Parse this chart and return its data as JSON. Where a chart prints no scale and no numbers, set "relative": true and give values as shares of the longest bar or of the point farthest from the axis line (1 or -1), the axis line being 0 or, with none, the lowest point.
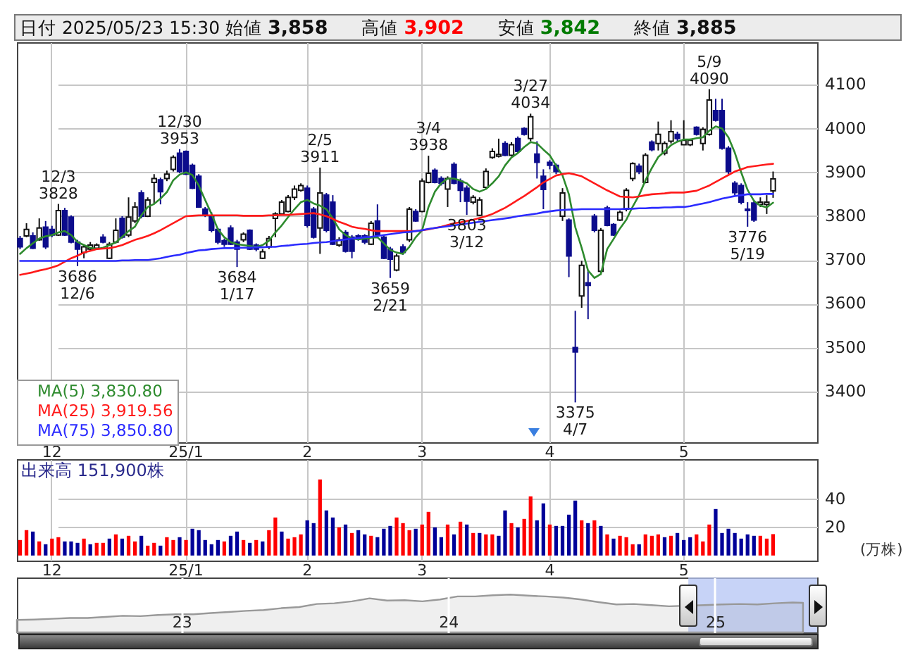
{
  "chart_data": [
    {
      "type": "candlestick",
      "title": "日付 2025/05/23 15:30 始値 3,858 高値 3,902 安値 3,842 終値 3,885",
      "categories": [
        null,
        null,
        null,
        null,
        null,
        "12",
        null,
        null,
        null,
        null,
        null,
        null,
        null,
        null,
        null,
        null,
        null,
        null,
        null,
        null,
        null,
        null,
        null,
        null,
        null,
        null,
        "25/1",
        null,
        null,
        null,
        null,
        null,
        null,
        null,
        null,
        null,
        null,
        null,
        null,
        null,
        null,
        null,
        null,
        null,
        null,
        "2",
        null,
        null,
        null,
        null,
        null,
        null,
        null,
        null,
        null,
        null,
        null,
        null,
        null,
        null,
        null,
        null,
        null,
        "3",
        null,
        null,
        null,
        null,
        null,
        null,
        null,
        null,
        null,
        null,
        null,
        null,
        null,
        null,
        null,
        null,
        null,
        null,
        null,
        "4",
        null,
        null,
        null,
        null,
        null,
        null,
        null,
        null,
        null,
        null,
        null,
        null,
        null,
        null,
        null,
        null,
        null,
        null,
        null,
        null,
        "5",
        null,
        null,
        null,
        null,
        null,
        null,
        null,
        null,
        null,
        null,
        null,
        null,
        null,
        null
      ],
      "ohlc": [
        [
          3749,
          3755,
          3725,
          3730
        ],
        [
          3755,
          3784,
          3752,
          3770
        ],
        [
          3755,
          3763,
          3725,
          3727
        ],
        [
          3746,
          3795,
          3744,
          3773
        ],
        [
          3775,
          3789,
          3725,
          3730
        ],
        [
          3770,
          3778,
          3752,
          3757
        ],
        [
          3757,
          3828,
          3755,
          3813
        ],
        [
          3813,
          3819,
          3755,
          3757
        ],
        [
          3798,
          3802,
          3738,
          3741
        ],
        [
          3741,
          3746,
          3686,
          3725
        ],
        [
          3717,
          3736,
          3704,
          3730
        ],
        [
          3725,
          3741,
          3720,
          3734
        ],
        [
          3727,
          3738,
          3723,
          3734
        ],
        [
          3752,
          3759,
          3738,
          3741
        ],
        [
          3704,
          3741,
          3702,
          3736
        ],
        [
          3741,
          3795,
          3738,
          3768
        ],
        [
          3795,
          3800,
          3749,
          3752
        ],
        [
          3757,
          3843,
          3752,
          3798
        ],
        [
          3789,
          3832,
          3784,
          3821
        ],
        [
          3853,
          3859,
          3795,
          3800
        ],
        [
          3800,
          3843,
          3798,
          3837
        ],
        [
          3877,
          3896,
          3827,
          3886
        ],
        [
          3883,
          3888,
          3827,
          3856
        ],
        [
          3886,
          3904,
          3880,
          3896
        ],
        [
          3907,
          3939,
          3902,
          3934
        ],
        [
          3944,
          3953,
          3898,
          3902
        ],
        [
          3948,
          3950,
          3894,
          3896
        ],
        [
          3916,
          3920,
          3862,
          3864
        ],
        [
          3891,
          3896,
          3819,
          3821
        ],
        [
          3816,
          3821,
          3798,
          3802
        ],
        [
          3800,
          3809,
          3763,
          3768
        ],
        [
          3770,
          3773,
          3736,
          3741
        ],
        [
          3744,
          3749,
          3730,
          3736
        ],
        [
          3773,
          3779,
          3734,
          3736
        ],
        [
          3741,
          3746,
          3684,
          3725
        ],
        [
          3746,
          3763,
          3741,
          3759
        ],
        [
          3768,
          3770,
          3723,
          3725
        ],
        [
          3734,
          3738,
          3720,
          3725
        ],
        [
          3704,
          3725,
          3702,
          3719
        ],
        [
          3730,
          3755,
          3725,
          3749
        ],
        [
          3795,
          3809,
          3752,
          3805
        ],
        [
          3805,
          3837,
          3802,
          3832
        ],
        [
          3811,
          3848,
          3809,
          3843
        ],
        [
          3843,
          3870,
          3837,
          3862
        ],
        [
          3859,
          3875,
          3856,
          3870
        ],
        [
          3864,
          3870,
          3774,
          3779
        ],
        [
          3816,
          3821,
          3749,
          3752
        ],
        [
          3773,
          3911,
          3714,
          3853
        ],
        [
          3848,
          3853,
          3763,
          3768
        ],
        [
          3832,
          3848,
          3734,
          3736
        ],
        [
          3734,
          3752,
          3730,
          3746
        ],
        [
          3763,
          3768,
          3717,
          3720
        ],
        [
          3752,
          3757,
          3704,
          3720
        ],
        [
          3755,
          3759,
          3744,
          3749
        ],
        [
          3755,
          3759,
          3736,
          3741
        ],
        [
          3736,
          3789,
          3734,
          3784
        ],
        [
          3789,
          3827,
          3752,
          3757
        ],
        [
          3752,
          3757,
          3702,
          3704
        ],
        [
          3725,
          3730,
          3659,
          3702
        ],
        [
          3677,
          3714,
          3674,
          3709
        ],
        [
          3730,
          3736,
          3712,
          3717
        ],
        [
          3746,
          3821,
          3741,
          3816
        ],
        [
          3811,
          3816,
          3787,
          3789
        ],
        [
          3811,
          3886,
          3809,
          3880
        ],
        [
          3877,
          3938,
          3875,
          3898
        ],
        [
          3905,
          3909,
          3875,
          3877
        ],
        [
          3886,
          3891,
          3870,
          3875
        ],
        [
          3862,
          3891,
          3821,
          3886
        ],
        [
          3918,
          3923,
          3873,
          3875
        ],
        [
          3880,
          3886,
          3832,
          3859
        ],
        [
          3864,
          3870,
          3803,
          3834
        ],
        [
          3832,
          3848,
          3827,
          3843
        ],
        [
          3802,
          3843,
          3800,
          3837
        ],
        [
          3866,
          3909,
          3862,
          3902
        ],
        [
          3934,
          3955,
          3931,
          3948
        ],
        [
          3937,
          3977,
          3934,
          3941
        ],
        [
          3966,
          3971,
          3937,
          3939
        ],
        [
          3939,
          3969,
          3937,
          3963
        ],
        [
          3977,
          3982,
          3944,
          3948
        ],
        [
          4000,
          4003,
          3984,
          3987
        ],
        [
          3977,
          4034,
          3971,
          4027
        ],
        [
          3942,
          3971,
          3886,
          3923
        ],
        [
          3891,
          3907,
          3816,
          3861
        ],
        [
          3923,
          3928,
          3907,
          3916
        ],
        [
          3916,
          3920,
          3896,
          3902
        ],
        [
          3800,
          3864,
          3789,
          3853
        ],
        [
          3791,
          3795,
          3661,
          3709
        ],
        [
          3500,
          3584,
          3375,
          3490
        ],
        [
          3618,
          3698,
          3591,
          3688
        ],
        [
          3648,
          3677,
          3565,
          3642
        ],
        [
          3800,
          3805,
          3763,
          3768
        ],
        [
          3674,
          3773,
          3666,
          3768
        ],
        [
          3819,
          3824,
          3777,
          3779
        ],
        [
          3781,
          3784,
          3755,
          3757
        ],
        [
          3791,
          3813,
          3789,
          3809
        ],
        [
          3816,
          3864,
          3811,
          3859
        ],
        [
          3886,
          3923,
          3880,
          3920
        ],
        [
          3914,
          3920,
          3896,
          3902
        ],
        [
          3877,
          3944,
          3875,
          3939
        ],
        [
          3969,
          3973,
          3948,
          3952
        ],
        [
          3966,
          4016,
          3950,
          3987
        ],
        [
          3944,
          3971,
          3939,
          3966
        ],
        [
          3971,
          4019,
          3966,
          3993
        ],
        [
          3987,
          3993,
          3971,
          3977
        ],
        [
          3963,
          4019,
          3963,
          3973
        ],
        [
          3963,
          3977,
          3960,
          3973
        ],
        [
          4003,
          4005,
          3984,
          3987
        ],
        [
          3966,
          4003,
          3950,
          3998
        ],
        [
          3987,
          4090,
          3984,
          4065
        ],
        [
          4041,
          4068,
          4016,
          4019
        ],
        [
          4041,
          4068,
          3952,
          3955
        ],
        [
          3955,
          3960,
          3896,
          3902
        ],
        [
          3875,
          3880,
          3848,
          3854
        ],
        [
          3870,
          3875,
          3827,
          3832
        ],
        [
          3816,
          3832,
          3776,
          3813
        ],
        [
          3830,
          3837,
          3787,
          3791
        ],
        [
          3827,
          3843,
          3821,
          3832
        ],
        [
          3827,
          3848,
          3805,
          3832
        ],
        [
          3858,
          3902,
          3842,
          3885
        ]
      ],
      "series": [
        {
          "name": "MA(5) 3,830.80",
          "type": "line",
          "color": "#2e8b2e",
          "values": [
            3714,
            3727,
            3738,
            3749,
            3754,
            3757,
            3763,
            3766,
            3757,
            3741,
            3734,
            3728,
            3725,
            3728,
            3734,
            3740,
            3753,
            3766,
            3776,
            3802,
            3821,
            3828,
            3840,
            3855,
            3882,
            3895,
            3900,
            3894,
            3870,
            3837,
            3805,
            3770,
            3752,
            3741,
            3736,
            3734,
            3732,
            3730,
            3734,
            3744,
            3763,
            3779,
            3798,
            3816,
            3832,
            3837,
            3829,
            3824,
            3816,
            3795,
            3770,
            3757,
            3749,
            3747,
            3749,
            3751,
            3752,
            3738,
            3723,
            3717,
            3714,
            3730,
            3752,
            3768,
            3821,
            3856,
            3875,
            3886,
            3886,
            3881,
            3875,
            3862,
            3856,
            3862,
            3875,
            3891,
            3916,
            3934,
            3944,
            3958,
            3969,
            3966,
            3952,
            3939,
            3915,
            3893,
            3850,
            3775,
            3728,
            3676,
            3659,
            3668,
            3725,
            3748,
            3772,
            3792,
            3822,
            3848,
            3882,
            3910,
            3935,
            3948,
            3962,
            3970,
            3975,
            3975,
            3978,
            3980,
            3995,
            4005,
            4000,
            3980,
            3945,
            3900,
            3860,
            3835,
            3824,
            3820,
            3830.8
          ]
        },
        {
          "name": "MA(25) 3,919.56",
          "type": "line",
          "color": "#ff1a1a",
          "values": [
            3666,
            3669,
            3672,
            3676,
            3679,
            3683,
            3688,
            3696,
            3704,
            3710,
            3717,
            3721,
            3725,
            3726,
            3727,
            3730,
            3734,
            3740,
            3746,
            3750,
            3755,
            3761,
            3768,
            3776,
            3784,
            3792,
            3800,
            3801,
            3802,
            3802,
            3802,
            3802,
            3802,
            3802,
            3802,
            3801,
            3801,
            3801,
            3801,
            3802,
            3802,
            3803,
            3803,
            3804,
            3805,
            3806,
            3807,
            3804,
            3800,
            3794,
            3787,
            3782,
            3776,
            3773,
            3771,
            3768,
            3766,
            3766,
            3766,
            3766,
            3766,
            3766,
            3766,
            3768,
            3770,
            3773,
            3776,
            3780,
            3784,
            3786,
            3789,
            3792,
            3796,
            3800,
            3805,
            3812,
            3819,
            3828,
            3837,
            3846,
            3856,
            3866,
            3877,
            3885,
            3893,
            3896,
            3898,
            3895,
            3891,
            3883,
            3875,
            3867,
            3859,
            3852,
            3845,
            3844,
            3843,
            3845,
            3848,
            3850,
            3851,
            3852,
            3854,
            3854,
            3854,
            3856,
            3858,
            3864,
            3870,
            3878,
            3886,
            3894,
            3902,
            3907,
            3912,
            3914,
            3916,
            3918,
            3919.56
          ]
        },
        {
          "name": "MA(75) 3,850.80",
          "type": "line",
          "color": "#2b2bff",
          "values": [
            3698,
            3698,
            3698,
            3698,
            3698,
            3698,
            3698,
            3698,
            3698,
            3698,
            3698,
            3698,
            3698,
            3698,
            3698,
            3698,
            3699,
            3699,
            3700,
            3700,
            3700,
            3702,
            3704,
            3707,
            3710,
            3712,
            3716,
            3719,
            3722,
            3723,
            3725,
            3726,
            3727,
            3727,
            3728,
            3728,
            3728,
            3729,
            3729,
            3730,
            3730,
            3732,
            3733,
            3735,
            3736,
            3737,
            3739,
            3740,
            3741,
            3743,
            3745,
            3747,
            3749,
            3750,
            3752,
            3753,
            3755,
            3757,
            3759,
            3761,
            3763,
            3764,
            3766,
            3768,
            3771,
            3773,
            3775,
            3777,
            3779,
            3781,
            3783,
            3785,
            3787,
            3789,
            3791,
            3793,
            3795,
            3797,
            3800,
            3802,
            3804,
            3806,
            3809,
            3811,
            3813,
            3814,
            3815,
            3815,
            3816,
            3816,
            3816,
            3816,
            3816,
            3816,
            3816,
            3817,
            3817,
            3818,
            3818,
            3819,
            3819,
            3820,
            3820,
            3821,
            3821,
            3823,
            3826,
            3829,
            3832,
            3836,
            3840,
            3843,
            3846,
            3848,
            3850,
            3850,
            3850,
            3851,
            3850.8
          ]
        }
      ],
      "ylim": [
        3284,
        4197
      ],
      "yticks": [
        3400,
        3500,
        3600,
        3700,
        3800,
        3900,
        4000,
        4100
      ],
      "grid": true,
      "legend": "bottom left",
      "annotations": [
        {
          "text": "12/3\n3828",
          "y": 3828
        },
        {
          "text": "3686\n12/6",
          "y": 3686
        },
        {
          "text": "12/30\n3953",
          "y": 3953
        },
        {
          "text": "3684\n1/17",
          "y": 3684
        },
        {
          "text": "2/5\n3911",
          "y": 3911
        },
        {
          "text": "3659\n2/21",
          "y": 3659
        },
        {
          "text": "3/4\n3938",
          "y": 3938
        },
        {
          "text": "3803\n3/12",
          "y": 3803
        },
        {
          "text": "3/27\n4034",
          "y": 4034
        },
        {
          "text": "3375\n4/7",
          "y": 3375
        },
        {
          "text": "5/9\n4090",
          "y": 4090
        },
        {
          "text": "3776\n5/19",
          "y": 3776
        }
      ]
    },
    {
      "type": "bar",
      "title": "出来高 151,900株",
      "ylabel": "(万株)",
      "categories": [
        null,
        null,
        null,
        null,
        null,
        "12",
        null,
        null,
        null,
        null,
        null,
        null,
        null,
        null,
        null,
        null,
        null,
        null,
        null,
        null,
        null,
        null,
        null,
        null,
        null,
        null,
        "25/1",
        null,
        null,
        null,
        null,
        null,
        null,
        null,
        null,
        null,
        null,
        null,
        null,
        null,
        null,
        null,
        null,
        null,
        null,
        "2",
        null,
        null,
        null,
        null,
        null,
        null,
        null,
        null,
        null,
        null,
        null,
        null,
        null,
        null,
        null,
        null,
        null,
        "3",
        null,
        null,
        null,
        null,
        null,
        null,
        null,
        null,
        null,
        null,
        null,
        null,
        null,
        null,
        null,
        null,
        null,
        null,
        null,
        "4",
        null,
        null,
        null,
        null,
        null,
        null,
        null,
        null,
        null,
        null,
        null,
        null,
        null,
        null,
        null,
        null,
        null,
        null,
        null,
        null,
        "5",
        null,
        null,
        null,
        null,
        null,
        null,
        null,
        null,
        null,
        null,
        null,
        null,
        null,
        null
      ],
      "values": [
        11,
        18,
        17,
        10,
        8,
        12,
        13,
        10,
        10,
        9,
        12,
        8,
        9,
        9,
        12,
        15,
        12,
        14,
        10,
        14,
        7,
        9,
        7,
        13,
        11,
        13,
        11,
        19,
        18,
        11,
        8,
        11,
        10,
        14,
        17,
        11,
        9,
        11,
        10,
        18,
        27,
        17,
        12,
        13,
        15,
        25,
        23,
        54,
        32,
        27,
        20,
        22,
        16,
        18,
        15,
        14,
        13,
        19,
        21,
        27,
        23,
        18,
        19,
        22,
        31,
        20,
        13,
        22,
        15,
        24,
        22,
        16,
        16,
        15,
        15,
        14,
        32,
        23,
        20,
        26,
        42,
        25,
        37,
        22,
        21,
        21,
        29,
        39,
        25,
        23,
        25,
        21,
        15,
        12,
        14,
        13,
        8,
        8,
        15,
        14,
        15,
        13,
        14,
        16,
        11,
        13,
        15,
        10,
        22,
        33,
        16,
        19,
        16,
        12,
        15,
        14,
        14,
        12,
        15.19
      ],
      "colors": [
        "#ff0000",
        "#ff0000",
        "#000099",
        "#ff0000",
        "#000099",
        "#ff0000",
        "#ff0000",
        "#000099",
        "#000099",
        "#000099",
        "#ff0000",
        "#000099",
        "#ff0000",
        "#ff0000",
        "#000099",
        "#ff0000",
        "#000099",
        "#ff0000",
        "#ff0000",
        "#000099",
        "#ff0000",
        "#ff0000",
        "#000099",
        "#ff0000",
        "#ff0000",
        "#000099",
        "#ff0000",
        "#000099",
        "#000099",
        "#000099",
        "#000099",
        "#000099",
        "#ff0000",
        "#000099",
        "#000099",
        "#ff0000",
        "#000099",
        "#ff0000",
        "#000099",
        "#ff0000",
        "#ff0000",
        "#000099",
        "#ff0000",
        "#ff0000",
        "#ff0000",
        "#000099",
        "#000099",
        "#ff0000",
        "#000099",
        "#000099",
        "#ff0000",
        "#000099",
        "#ff0000",
        "#000099",
        "#000099",
        "#ff0000",
        "#000099",
        "#000099",
        "#000099",
        "#ff0000",
        "#ff0000",
        "#ff0000",
        "#000099",
        "#ff0000",
        "#ff0000",
        "#000099",
        "#000099",
        "#ff0000",
        "#000099",
        "#ff0000",
        "#000099",
        "#ff0000",
        "#000099",
        "#ff0000",
        "#ff0000",
        "#000099",
        "#000099",
        "#ff0000",
        "#000099",
        "#ff0000",
        "#ff0000",
        "#000099",
        "#000099",
        "#ff0000",
        "#000099",
        "#000099",
        "#000099",
        "#000099",
        "#ff0000",
        "#000099",
        "#ff0000",
        "#000099",
        "#ff0000",
        "#000099",
        "#ff0000",
        "#ff0000",
        "#ff0000",
        "#000099",
        "#ff0000",
        "#ff0000",
        "#ff0000",
        "#000099",
        "#ff0000",
        "#000099",
        "#000099",
        "#000099",
        "#ff0000",
        "#ff0000",
        "#ff0000",
        "#000099",
        "#000099",
        "#000099",
        "#000099",
        "#000099",
        "#000099",
        "#000099",
        "#ff0000",
        "#ff0000",
        "#ff0000"
      ],
      "ylim": [
        -3.6,
        68.4
      ],
      "yticks": [
        20,
        40
      ],
      "grid": true
    },
    {
      "type": "area",
      "relative": true,
      "color": "#999999",
      "x": [
        2022.383,
        2022.449,
        2022.515,
        2022.581,
        2022.648,
        2022.714,
        2022.78,
        2022.846,
        2022.912,
        2022.978,
        2023.044,
        2023.11,
        2023.176,
        2023.242,
        2023.308,
        2023.374,
        2023.441,
        2023.507,
        2023.573,
        2023.639,
        2023.705,
        2023.771,
        2023.837,
        2023.903,
        2023.969,
        2024.035,
        2024.101,
        2024.167,
        2024.233,
        2024.3,
        2024.366,
        2024.432,
        2024.498,
        2024.564,
        2024.63,
        2024.696,
        2024.762,
        2024.828,
        2024.96,
        2025.026,
        2025.093,
        2025.159,
        2025.225,
        2025.291,
        2025.33
      ],
      "values": [
        0.33,
        0.34,
        0.36,
        0.38,
        0.38,
        0.41,
        0.44,
        0.43,
        0.46,
        0.48,
        0.48,
        0.51,
        0.54,
        0.57,
        0.59,
        0.64,
        0.67,
        0.75,
        0.77,
        0.82,
        0.9,
        0.84,
        0.85,
        0.82,
        0.87,
        0.95,
        0.95,
        0.98,
        1,
        0.97,
        0.95,
        0.92,
        0.87,
        0.8,
        0.74,
        0.75,
        0.72,
        0.69,
        0.72,
        0.74,
        0.75,
        0.74,
        0.77,
        0.79,
        0.78
      ],
      "xlim": [
        2022.383,
        2025.383
      ],
      "xticks": [
        {
          "value": 2023,
          "label": "23"
        },
        {
          "value": 2024,
          "label": "24"
        },
        {
          "value": 2025,
          "label": "25"
        }
      ],
      "grid": "x",
      "bands": [
        {
          "axis": "x",
          "from": 2024.9,
          "to": 2025.383,
          "color": "#b4c4f4"
        }
      ]
    }
  ]
}
